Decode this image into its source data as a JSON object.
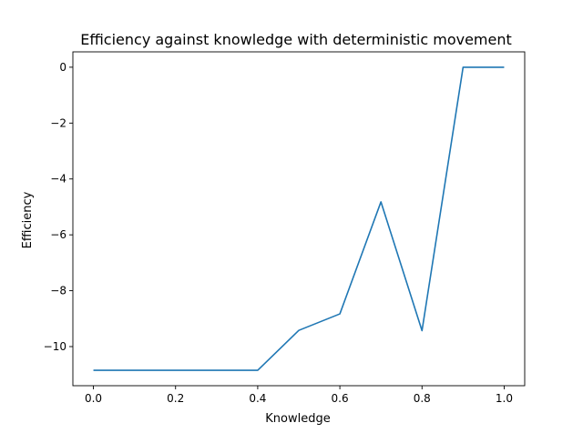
{
  "chart_data": {
    "type": "line",
    "title": "Efficiency against knowledge with deterministic movement",
    "xlabel": "Knowledge",
    "ylabel": "Efficiency",
    "xlim": [
      -0.05,
      1.05
    ],
    "ylim": [
      -11.4,
      0.55
    ],
    "grid": false,
    "line_color": "#1f77b4",
    "x_ticks": [
      0.0,
      0.2,
      0.4,
      0.6,
      0.8,
      1.0
    ],
    "x_tick_labels": [
      "0.0",
      "0.2",
      "0.4",
      "0.6",
      "0.8",
      "1.0"
    ],
    "y_ticks": [
      0,
      -2,
      -4,
      -6,
      -8,
      -10
    ],
    "y_tick_labels": [
      "0",
      "−2",
      "−4",
      "−6",
      "−8",
      "−10"
    ],
    "series": [
      {
        "x": [
          0.0,
          0.1,
          0.2,
          0.3,
          0.4,
          0.5,
          0.6,
          0.7,
          0.8,
          0.9,
          1.0
        ],
        "values": [
          -10.85,
          -10.85,
          -10.85,
          -10.85,
          -10.85,
          -9.42,
          -8.83,
          -4.82,
          -9.43,
          0.0,
          0.0
        ]
      }
    ]
  }
}
